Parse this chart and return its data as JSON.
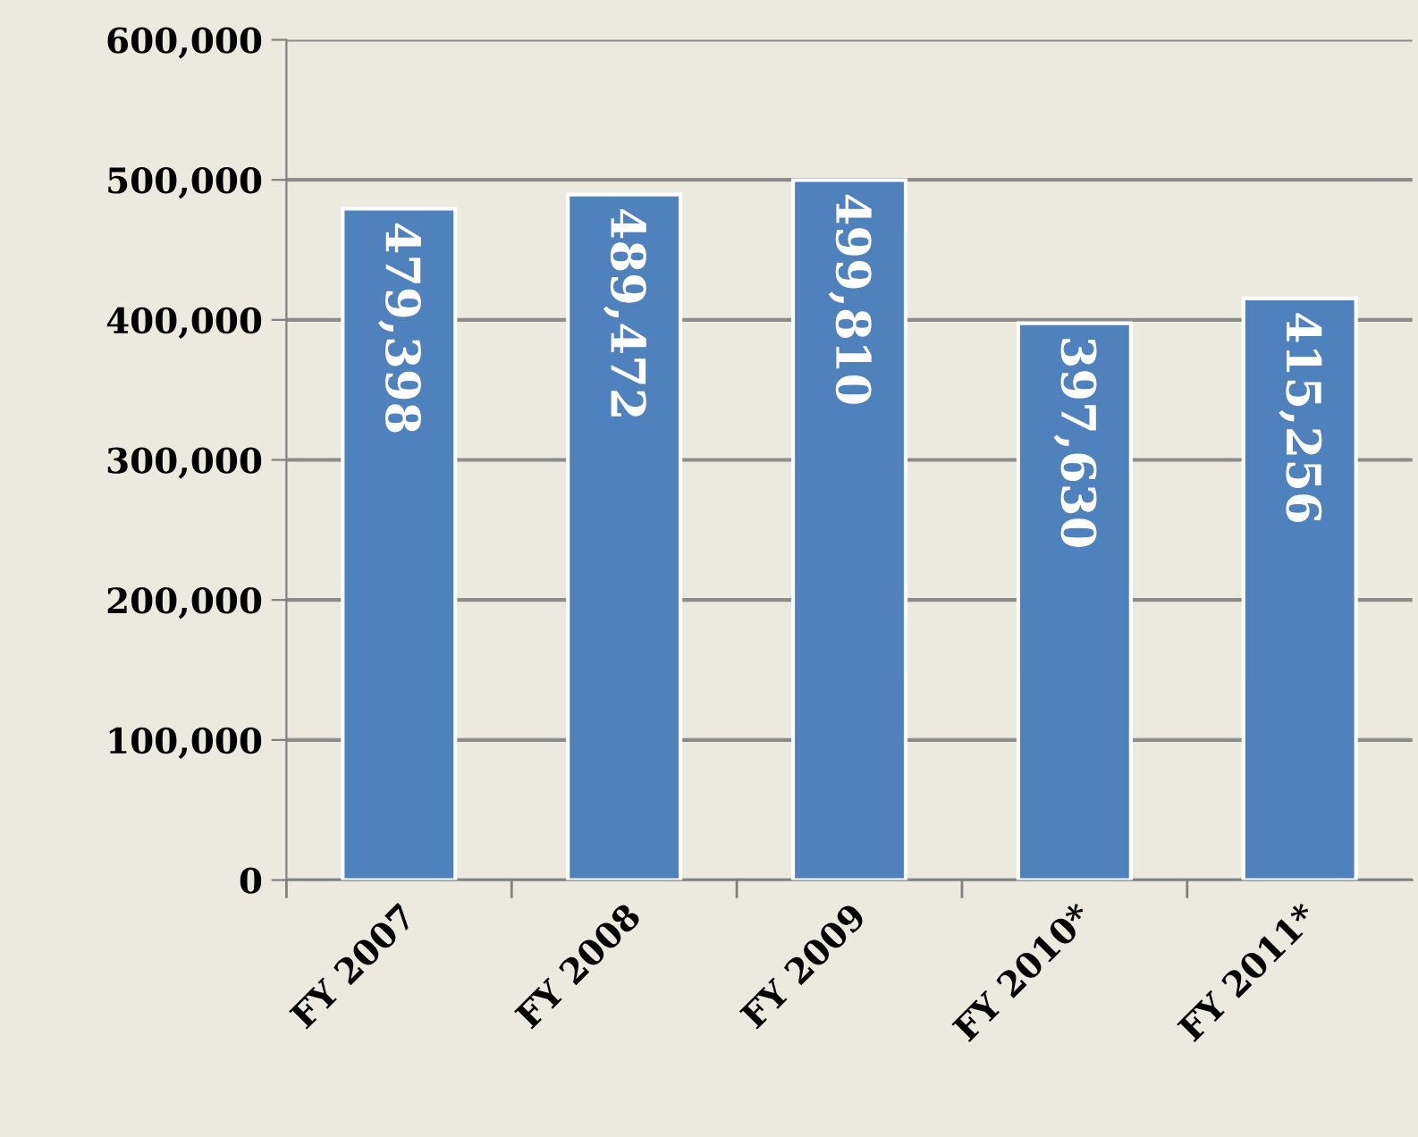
{
  "chart_data": {
    "type": "bar",
    "categories": [
      "FY 2007",
      "FY 2008",
      "FY 2009",
      "FY 2010*",
      "FY 2011*"
    ],
    "values": [
      479398,
      489472,
      499810,
      397630,
      415256
    ],
    "color": "#4f81bd",
    "ylim": [
      0,
      600000
    ],
    "yticks": [
      {
        "value": 0,
        "label": "0"
      },
      {
        "value": 100000,
        "label": "100,000"
      },
      {
        "value": 200000,
        "label": "200,000"
      },
      {
        "value": 300000,
        "label": "300,000"
      },
      {
        "value": 400000,
        "label": "400,000"
      },
      {
        "value": 500000,
        "label": "500,000"
      },
      {
        "value": 600000,
        "label": "600,000"
      }
    ],
    "value_labels": [
      "479,398",
      "489,472",
      "499,810",
      "397,630",
      "415,256"
    ],
    "grid": "y",
    "legend": false
  }
}
